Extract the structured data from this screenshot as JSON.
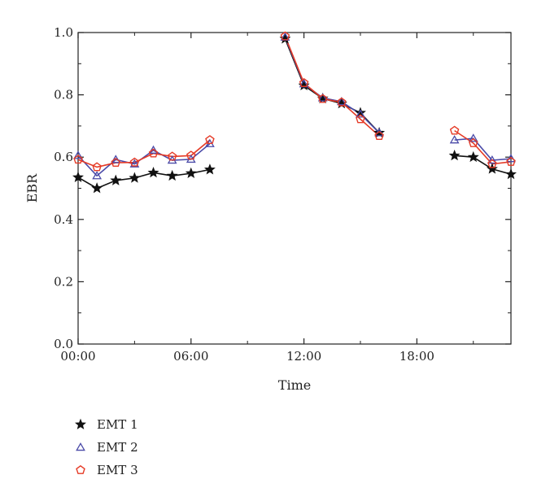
{
  "chart_data": {
    "type": "line",
    "title": "",
    "xlabel": "Time",
    "ylabel": "EBR",
    "xlim": [
      0,
      23
    ],
    "ylim": [
      0.0,
      1.0
    ],
    "x_ticks": [
      0,
      6,
      12,
      18
    ],
    "x_tick_labels": [
      "00:00",
      "06:00",
      "12:00",
      "18:00"
    ],
    "y_ticks": [
      0.0,
      0.2,
      0.4,
      0.6,
      0.8,
      1.0
    ],
    "y_tick_labels": [
      "0.0",
      "0.2",
      "0.4",
      "0.6",
      "0.8",
      "1.0"
    ],
    "grid": false,
    "legend_position": "bottom-left",
    "series": [
      {
        "name": "EMT 1",
        "marker": "star",
        "color": "#111111",
        "segments": [
          [
            [
              0,
              0.535
            ],
            [
              1,
              0.5
            ],
            [
              2,
              0.525
            ],
            [
              3,
              0.533
            ],
            [
              4,
              0.55
            ],
            [
              5,
              0.54
            ],
            [
              6,
              0.548
            ],
            [
              7,
              0.56
            ]
          ],
          [
            [
              11,
              0.98
            ],
            [
              12,
              0.83
            ],
            [
              13,
              0.788
            ],
            [
              14,
              0.772
            ],
            [
              15,
              0.742
            ],
            [
              16,
              0.678
            ]
          ],
          [
            [
              20,
              0.605
            ],
            [
              21,
              0.6
            ],
            [
              22,
              0.562
            ],
            [
              23,
              0.545
            ]
          ]
        ]
      },
      {
        "name": "EMT 2",
        "marker": "triangle",
        "color": "#4a4aa8",
        "segments": [
          [
            [
              0,
              0.605
            ],
            [
              1,
              0.54
            ],
            [
              2,
              0.592
            ],
            [
              3,
              0.578
            ],
            [
              4,
              0.622
            ],
            [
              5,
              0.59
            ],
            [
              6,
              0.593
            ],
            [
              7,
              0.643
            ]
          ],
          [
            [
              11,
              0.985
            ],
            [
              12,
              0.835
            ],
            [
              13,
              0.79
            ],
            [
              14,
              0.778
            ],
            [
              15,
              0.738
            ],
            [
              16,
              0.678
            ]
          ],
          [
            [
              20,
              0.655
            ],
            [
              21,
              0.66
            ],
            [
              22,
              0.59
            ],
            [
              23,
              0.595
            ]
          ]
        ]
      },
      {
        "name": "EMT 3",
        "marker": "pentagon",
        "color": "#e53a26",
        "segments": [
          [
            [
              0,
              0.592
            ],
            [
              1,
              0.568
            ],
            [
              2,
              0.582
            ],
            [
              3,
              0.583
            ],
            [
              4,
              0.612
            ],
            [
              5,
              0.602
            ],
            [
              6,
              0.605
            ],
            [
              7,
              0.655
            ]
          ],
          [
            [
              11,
              0.988
            ],
            [
              12,
              0.838
            ],
            [
              13,
              0.787
            ],
            [
              14,
              0.776
            ],
            [
              15,
              0.722
            ],
            [
              16,
              0.668
            ]
          ],
          [
            [
              20,
              0.685
            ],
            [
              21,
              0.645
            ],
            [
              22,
              0.578
            ],
            [
              23,
              0.585
            ]
          ]
        ]
      }
    ]
  }
}
